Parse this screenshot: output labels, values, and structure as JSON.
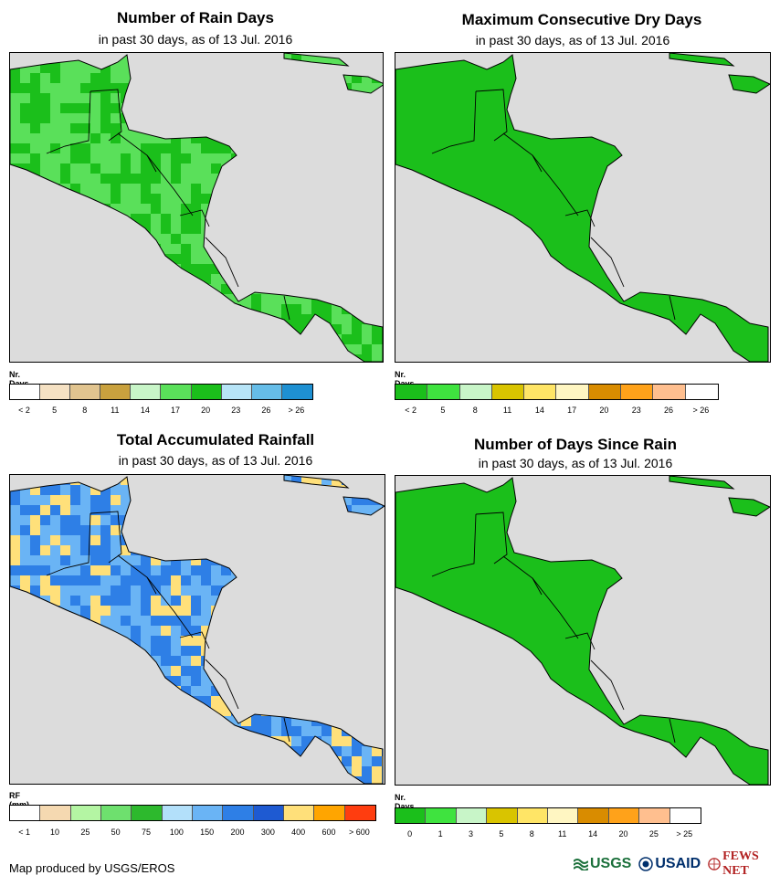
{
  "panels": [
    {
      "id": "rain-days",
      "title": "Number of Rain Days",
      "subtitle": "in past 30 days, as of 13 Jul. 2016",
      "legend": {
        "title": "Nr. Days",
        "colors": [
          "#ffffff",
          "#f5e1c3",
          "#e1c48f",
          "#c9a13e",
          "#c8f5c8",
          "#5ae05a",
          "#1bbf1b",
          "#b7e4f7",
          "#66bde8",
          "#1e90d2"
        ],
        "ticks": [
          "< 2",
          "5",
          "8",
          "11",
          "14",
          "17",
          "20",
          "23",
          "26",
          "> 26"
        ]
      }
    },
    {
      "id": "dry-days",
      "title": "Maximum Consecutive Dry Days",
      "subtitle": "in past 30 days, as of 13 Jul. 2016",
      "legend": {
        "title": "Nr. Days",
        "colors": [
          "#1bbf1b",
          "#3fe33f",
          "#c8f5c8",
          "#d9c400",
          "#ffe566",
          "#fff6c2",
          "#d98c00",
          "#ffa21a",
          "#ffbf8f",
          "#ffffff"
        ],
        "ticks": [
          "< 2",
          "5",
          "8",
          "11",
          "14",
          "17",
          "20",
          "23",
          "26",
          "> 26"
        ]
      }
    },
    {
      "id": "rainfall",
      "title": "Total Accumulated Rainfall",
      "subtitle": "in past 30 days, as of 13 Jul. 2016",
      "legend": {
        "title": "RF (mm)",
        "colors": [
          "#ffffff",
          "#f5d9b1",
          "#b4f5a3",
          "#6ee06e",
          "#2db92d",
          "#b3e0fa",
          "#6ab4f5",
          "#2e7fe6",
          "#1e5ad2",
          "#ffe07a",
          "#ffa500",
          "#ff3d0f"
        ],
        "ticks": [
          "< 1",
          "10",
          "25",
          "50",
          "75",
          "100",
          "150",
          "200",
          "300",
          "400",
          "600",
          "> 600"
        ]
      }
    },
    {
      "id": "days-since-rain",
      "title": "Number of Days Since Rain",
      "subtitle": "in past 30 days, as of 13 Jul. 2016",
      "legend": {
        "title": "Nr. Days",
        "colors": [
          "#1bbf1b",
          "#3fe33f",
          "#c8f5c8",
          "#d9c400",
          "#ffe566",
          "#fff6c2",
          "#d98c00",
          "#ffa21a",
          "#ffbf8f",
          "#ffffff"
        ],
        "ticks": [
          "0",
          "1",
          "3",
          "5",
          "8",
          "11",
          "14",
          "20",
          "25",
          "> 25"
        ]
      }
    }
  ],
  "footer": {
    "credit": "Map produced by USGS/EROS"
  },
  "logos": {
    "usgs": "USGS",
    "usaid": "USAID",
    "fews": "FEWS NET"
  }
}
